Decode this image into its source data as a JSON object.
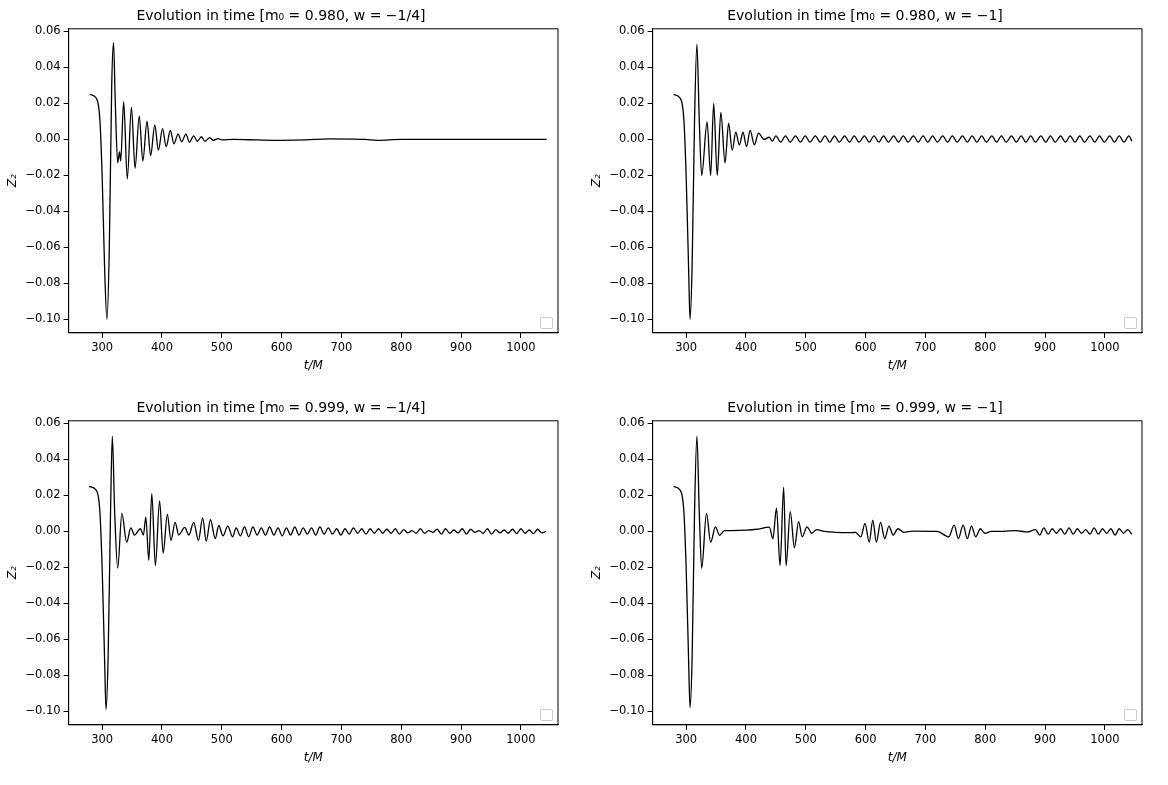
{
  "chart_data": [
    {
      "type": "line",
      "title": "Evolution in time [m₀ = 0.980, w = −1/4]",
      "xlabel": "t/M",
      "ylabel": "Z₂",
      "grid": false,
      "marker": "none",
      "line_style": "solid",
      "xlim": [
        244,
        1062
      ],
      "ylim": [
        -0.1075,
        0.0615
      ],
      "xticks": [
        300,
        400,
        500,
        600,
        700,
        800,
        900,
        1000
      ],
      "yticks": [
        {
          "value": -0.1,
          "label": "−0.10"
        },
        {
          "value": -0.08,
          "label": "−0.08"
        },
        {
          "value": -0.06,
          "label": "−0.06"
        },
        {
          "value": -0.04,
          "label": "−0.04"
        },
        {
          "value": -0.02,
          "label": "−0.02"
        },
        {
          "value": 0,
          "label": "0.00"
        },
        {
          "value": 0.02,
          "label": "0.02"
        },
        {
          "value": 0.04,
          "label": "0.04"
        },
        {
          "value": 0.06,
          "label": "0.06"
        }
      ],
      "series": [
        {
          "color": "#000000",
          "x": [
            280,
            290,
            296,
            300,
            304,
            308,
            312,
            316,
            319,
            322,
            326,
            329,
            331,
            336,
            342,
            349,
            355,
            362,
            368,
            375,
            381,
            388,
            394,
            401,
            407,
            414,
            420,
            427,
            433,
            440,
            446,
            453,
            459,
            466,
            472,
            480,
            486,
            494,
            500,
            520,
            560,
            600,
            640,
            680,
            720,
            740,
            760,
            800,
            900,
            1000,
            1043
          ],
          "values": [
            0.025,
            0.023,
            0.012,
            -0.02,
            -0.07,
            -0.1,
            -0.06,
            0.03,
            0.054,
            0.02,
            -0.013,
            -0.007,
            -0.012,
            0.021,
            -0.022,
            0.018,
            -0.016,
            0.013,
            -0.012,
            0.01,
            -0.009,
            0.008,
            -0.006,
            0.006,
            -0.004,
            0.005,
            -0.0024,
            0.003,
            -0.0013,
            0.003,
            -0.0015,
            0.002,
            -0.001,
            0.0015,
            -0.001,
            0.001,
            -0.0005,
            0.0005,
            -0.0003,
            0,
            -0.0003,
            -0.0005,
            -0.0003,
            0.0003,
            0.0002,
            0,
            -0.0005,
            0,
            0,
            0,
            0
          ]
        }
      ]
    },
    {
      "type": "line",
      "title": "Evolution in time [m₀ = 0.980, w = −1]",
      "xlabel": "t/M",
      "ylabel": "Z₂",
      "grid": false,
      "marker": "none",
      "line_style": "solid",
      "xlim": [
        244,
        1062
      ],
      "ylim": [
        -0.1075,
        0.0615
      ],
      "xticks": [
        300,
        400,
        500,
        600,
        700,
        800,
        900,
        1000
      ],
      "yticks": [
        {
          "value": -0.1,
          "label": "−0.10"
        },
        {
          "value": -0.08,
          "label": "−0.08"
        },
        {
          "value": -0.06,
          "label": "−0.06"
        },
        {
          "value": -0.04,
          "label": "−0.04"
        },
        {
          "value": -0.02,
          "label": "−0.02"
        },
        {
          "value": 0,
          "label": "0.00"
        },
        {
          "value": 0.02,
          "label": "0.02"
        },
        {
          "value": 0.04,
          "label": "0.04"
        },
        {
          "value": 0.06,
          "label": "0.06"
        }
      ],
      "series": [
        {
          "color": "#000000",
          "x": [
            279,
            290,
            296,
            300,
            304,
            306.5,
            310,
            314,
            318,
            322,
            326,
            335,
            341,
            346,
            352,
            358,
            365,
            371,
            377,
            383,
            389,
            395,
            401,
            407,
            414,
            421,
            430,
            439,
            444,
            450,
            458,
            466,
            474,
            483,
            491,
            499,
            507,
            516,
            524,
            532,
            540,
            548,
            556,
            565,
            573,
            581,
            589,
            598,
            606,
            614,
            622,
            630,
            638,
            647,
            655,
            663,
            671,
            680,
            688,
            696,
            704,
            712,
            720,
            729,
            737,
            745,
            753,
            762,
            770,
            778,
            786,
            794,
            802,
            811,
            819,
            827,
            835,
            844,
            852,
            860,
            868,
            876,
            884,
            893,
            901,
            909,
            917,
            926,
            934,
            942,
            950,
            958,
            966,
            975,
            983,
            991,
            999,
            1008,
            1016,
            1024,
            1032,
            1040,
            1045
          ],
          "values": [
            0.025,
            0.023,
            0.012,
            -0.02,
            -0.07,
            -0.1,
            -0.07,
            0.01,
            0.053,
            0.01,
            -0.02,
            0.0097,
            -0.02,
            0.02,
            -0.02,
            0.015,
            -0.013,
            0.009,
            -0.006,
            0.004,
            -0.003,
            0.004,
            -0.004,
            0.005,
            -0.003,
            0.0035,
            0,
            0.0012,
            -0.001,
            0.002,
            -0.0015,
            0.002,
            -0.0015,
            0.002,
            -0.0015,
            0.002,
            -0.0015,
            0.002,
            -0.0015,
            0.002,
            -0.0015,
            0.002,
            -0.0015,
            0.002,
            -0.0015,
            0.002,
            -0.0015,
            0.002,
            -0.0015,
            0.002,
            -0.0015,
            0.002,
            -0.0015,
            0.002,
            -0.0015,
            0.002,
            -0.0015,
            0.002,
            -0.0015,
            0.002,
            -0.0015,
            0.002,
            -0.0015,
            0.002,
            -0.0015,
            0.002,
            -0.0015,
            0.002,
            -0.0015,
            0.002,
            -0.0015,
            0.002,
            -0.0015,
            0.002,
            -0.0015,
            0.002,
            -0.0015,
            0.002,
            -0.0015,
            0.002,
            -0.0015,
            0.002,
            -0.0015,
            0.002,
            -0.0015,
            0.002,
            -0.0015,
            0.002,
            -0.0015,
            0.002,
            -0.0015,
            0.002,
            -0.0015,
            0.002,
            -0.0015,
            0.002,
            -0.0015,
            0.002,
            -0.0015,
            0.002,
            -0.0015,
            0.002,
            -0.001
          ]
        }
      ]
    },
    {
      "type": "line",
      "title": "Evolution in time [m₀ = 0.999, w = −1/4]",
      "xlabel": "t/M",
      "ylabel": "Z₂",
      "grid": false,
      "marker": "none",
      "line_style": "solid",
      "xlim": [
        244,
        1062
      ],
      "ylim": [
        -0.1075,
        0.0615
      ],
      "xticks": [
        300,
        400,
        500,
        600,
        700,
        800,
        900,
        1000
      ],
      "yticks": [
        {
          "value": -0.1,
          "label": "−0.10"
        },
        {
          "value": -0.08,
          "label": "−0.08"
        },
        {
          "value": -0.06,
          "label": "−0.06"
        },
        {
          "value": -0.04,
          "label": "−0.04"
        },
        {
          "value": -0.02,
          "label": "−0.02"
        },
        {
          "value": 0,
          "label": "0.00"
        },
        {
          "value": 0.02,
          "label": "0.02"
        },
        {
          "value": 0.04,
          "label": "0.04"
        },
        {
          "value": 0.06,
          "label": "0.06"
        }
      ],
      "series": [
        {
          "color": "#000000",
          "x": [
            278,
            290,
            296,
            300,
            304,
            306.5,
            310,
            314,
            317,
            321,
            326,
            333,
            341,
            348,
            354,
            364,
            369,
            373,
            378,
            383,
            389,
            396,
            402,
            409,
            415,
            422,
            428,
            438,
            445,
            453,
            461,
            468,
            474,
            481,
            489,
            495,
            502,
            510,
            518,
            524,
            531,
            538,
            545,
            552,
            559,
            566,
            573,
            580,
            587,
            594,
            601,
            608,
            615,
            622,
            629,
            636,
            643,
            650,
            657,
            664,
            671,
            678,
            685,
            692,
            699,
            706,
            713,
            720,
            727,
            734,
            741,
            748,
            755,
            762,
            769,
            776,
            783,
            790,
            797,
            804,
            811,
            818,
            825,
            832,
            839,
            846,
            853,
            860,
            867,
            874,
            881,
            888,
            895,
            902,
            909,
            916,
            923,
            930,
            937,
            944,
            951,
            958,
            965,
            972,
            979,
            986,
            993,
            1000,
            1007,
            1014,
            1021,
            1028,
            1035,
            1042
          ],
          "values": [
            0.025,
            0.023,
            0.012,
            -0.02,
            -0.07,
            -0.099,
            -0.07,
            0.01,
            0.053,
            0.01,
            -0.0204,
            0.01,
            -0.006,
            0.002,
            -0.002,
            0.0015,
            -0.002,
            0.008,
            -0.016,
            0.021,
            -0.019,
            0.017,
            -0.012,
            0.0095,
            -0.005,
            0.005,
            -0.002,
            0.0022,
            -0.002,
            0.005,
            -0.005,
            0.0075,
            -0.0055,
            0.0065,
            -0.004,
            0.0033,
            -0.0025,
            0.003,
            -0.003,
            0.002,
            -0.0025,
            0.0025,
            -0.003,
            0.0025,
            -0.002,
            0.002,
            -0.002,
            0.0025,
            -0.002,
            0.002,
            -0.0025,
            0.002,
            -0.002,
            0.0025,
            -0.002,
            0.002,
            -0.0015,
            0.002,
            -0.002,
            0.0025,
            -0.0015,
            0.002,
            -0.0015,
            0.0015,
            -0.002,
            0.0015,
            -0.0015,
            0.002,
            -0.001,
            0.0015,
            -0.0015,
            0.0015,
            -0.001,
            0.0015,
            -0.001,
            0.0012,
            -0.001,
            0.0015,
            -0.0015,
            0.001,
            -0.0008,
            0.0005,
            -0.001,
            0.0015,
            -0.001,
            0.0005,
            -0.0005,
            0.0012,
            -0.0015,
            0.0015,
            -0.001,
            0.0008,
            -0.0008,
            0.0015,
            -0.0015,
            0.0012,
            -0.0005,
            0.0005,
            -0.001,
            0.0015,
            -0.0015,
            0.001,
            -0.0008,
            0.0008,
            -0.001,
            0.0012,
            -0.0012,
            0.0015,
            -0.001,
            0.0008,
            -0.0012,
            0.0012,
            -0.0008,
            0
          ]
        }
      ]
    },
    {
      "type": "line",
      "title": "Evolution in time [m₀ = 0.999, w = −1]",
      "xlabel": "t/M",
      "ylabel": "Z₂",
      "grid": false,
      "marker": "none",
      "line_style": "solid",
      "xlim": [
        244,
        1062
      ],
      "ylim": [
        -0.1075,
        0.0615
      ],
      "xticks": [
        300,
        400,
        500,
        600,
        700,
        800,
        900,
        1000
      ],
      "yticks": [
        {
          "value": -0.1,
          "label": "−0.10"
        },
        {
          "value": -0.08,
          "label": "−0.08"
        },
        {
          "value": -0.06,
          "label": "−0.06"
        },
        {
          "value": -0.04,
          "label": "−0.04"
        },
        {
          "value": -0.02,
          "label": "−0.02"
        },
        {
          "value": 0,
          "label": "0.00"
        },
        {
          "value": 0.02,
          "label": "0.02"
        },
        {
          "value": 0.04,
          "label": "0.04"
        },
        {
          "value": 0.06,
          "label": "0.06"
        }
      ],
      "series": [
        {
          "color": "#000000",
          "x": [
            279,
            290,
            296,
            300,
            304,
            306.5,
            310,
            314,
            318,
            322,
            326,
            334,
            341,
            349,
            356,
            364,
            376,
            400,
            418,
            439,
            445,
            451,
            457,
            463,
            467,
            474,
            481,
            488,
            494,
            502,
            510,
            518,
            531,
            577,
            583,
            592,
            599,
            606,
            612,
            618,
            625,
            632,
            639,
            646,
            654,
            664,
            679,
            720,
            739,
            748,
            755,
            763,
            770,
            777,
            784,
            792,
            799,
            810,
            830,
            850,
            870,
            884,
            891,
            898,
            905,
            912,
            919,
            926,
            933,
            940,
            947,
            954,
            961,
            968,
            975,
            982,
            989,
            996,
            1003,
            1010,
            1017,
            1024,
            1031,
            1038,
            1045
          ],
          "values": [
            0.025,
            0.023,
            0.012,
            -0.02,
            -0.07,
            -0.098,
            -0.07,
            0.01,
            0.053,
            0.01,
            -0.0205,
            0.01,
            -0.006,
            0.0025,
            -0.0022,
            0.0005,
            0.0005,
            0.0007,
            0.0012,
            0.0024,
            -0.004,
            0.013,
            -0.019,
            0.0245,
            -0.019,
            0.011,
            -0.009,
            0.0055,
            -0.003,
            0.0025,
            -0.001,
            0.001,
            0,
            -0.0007,
            -0.0005,
            -0.003,
            0.0045,
            -0.006,
            0.0062,
            -0.006,
            0.005,
            -0.004,
            0.003,
            -0.002,
            0.0015,
            -0.0005,
            0.0002,
            0,
            -0.003,
            0.0035,
            -0.004,
            0.0035,
            -0.004,
            0.003,
            -0.003,
            0.0015,
            -0.001,
            0,
            0,
            0.0005,
            -0.0003,
            0.001,
            -0.002,
            0.002,
            -0.0015,
            0.0015,
            -0.001,
            0.0015,
            -0.0015,
            0.002,
            -0.0015,
            0.0015,
            -0.001,
            0.001,
            -0.0015,
            0.002,
            -0.0015,
            0.0015,
            -0.001,
            0.0015,
            -0.002,
            0.0015,
            -0.001,
            0.001,
            -0.0015
          ]
        }
      ]
    }
  ]
}
